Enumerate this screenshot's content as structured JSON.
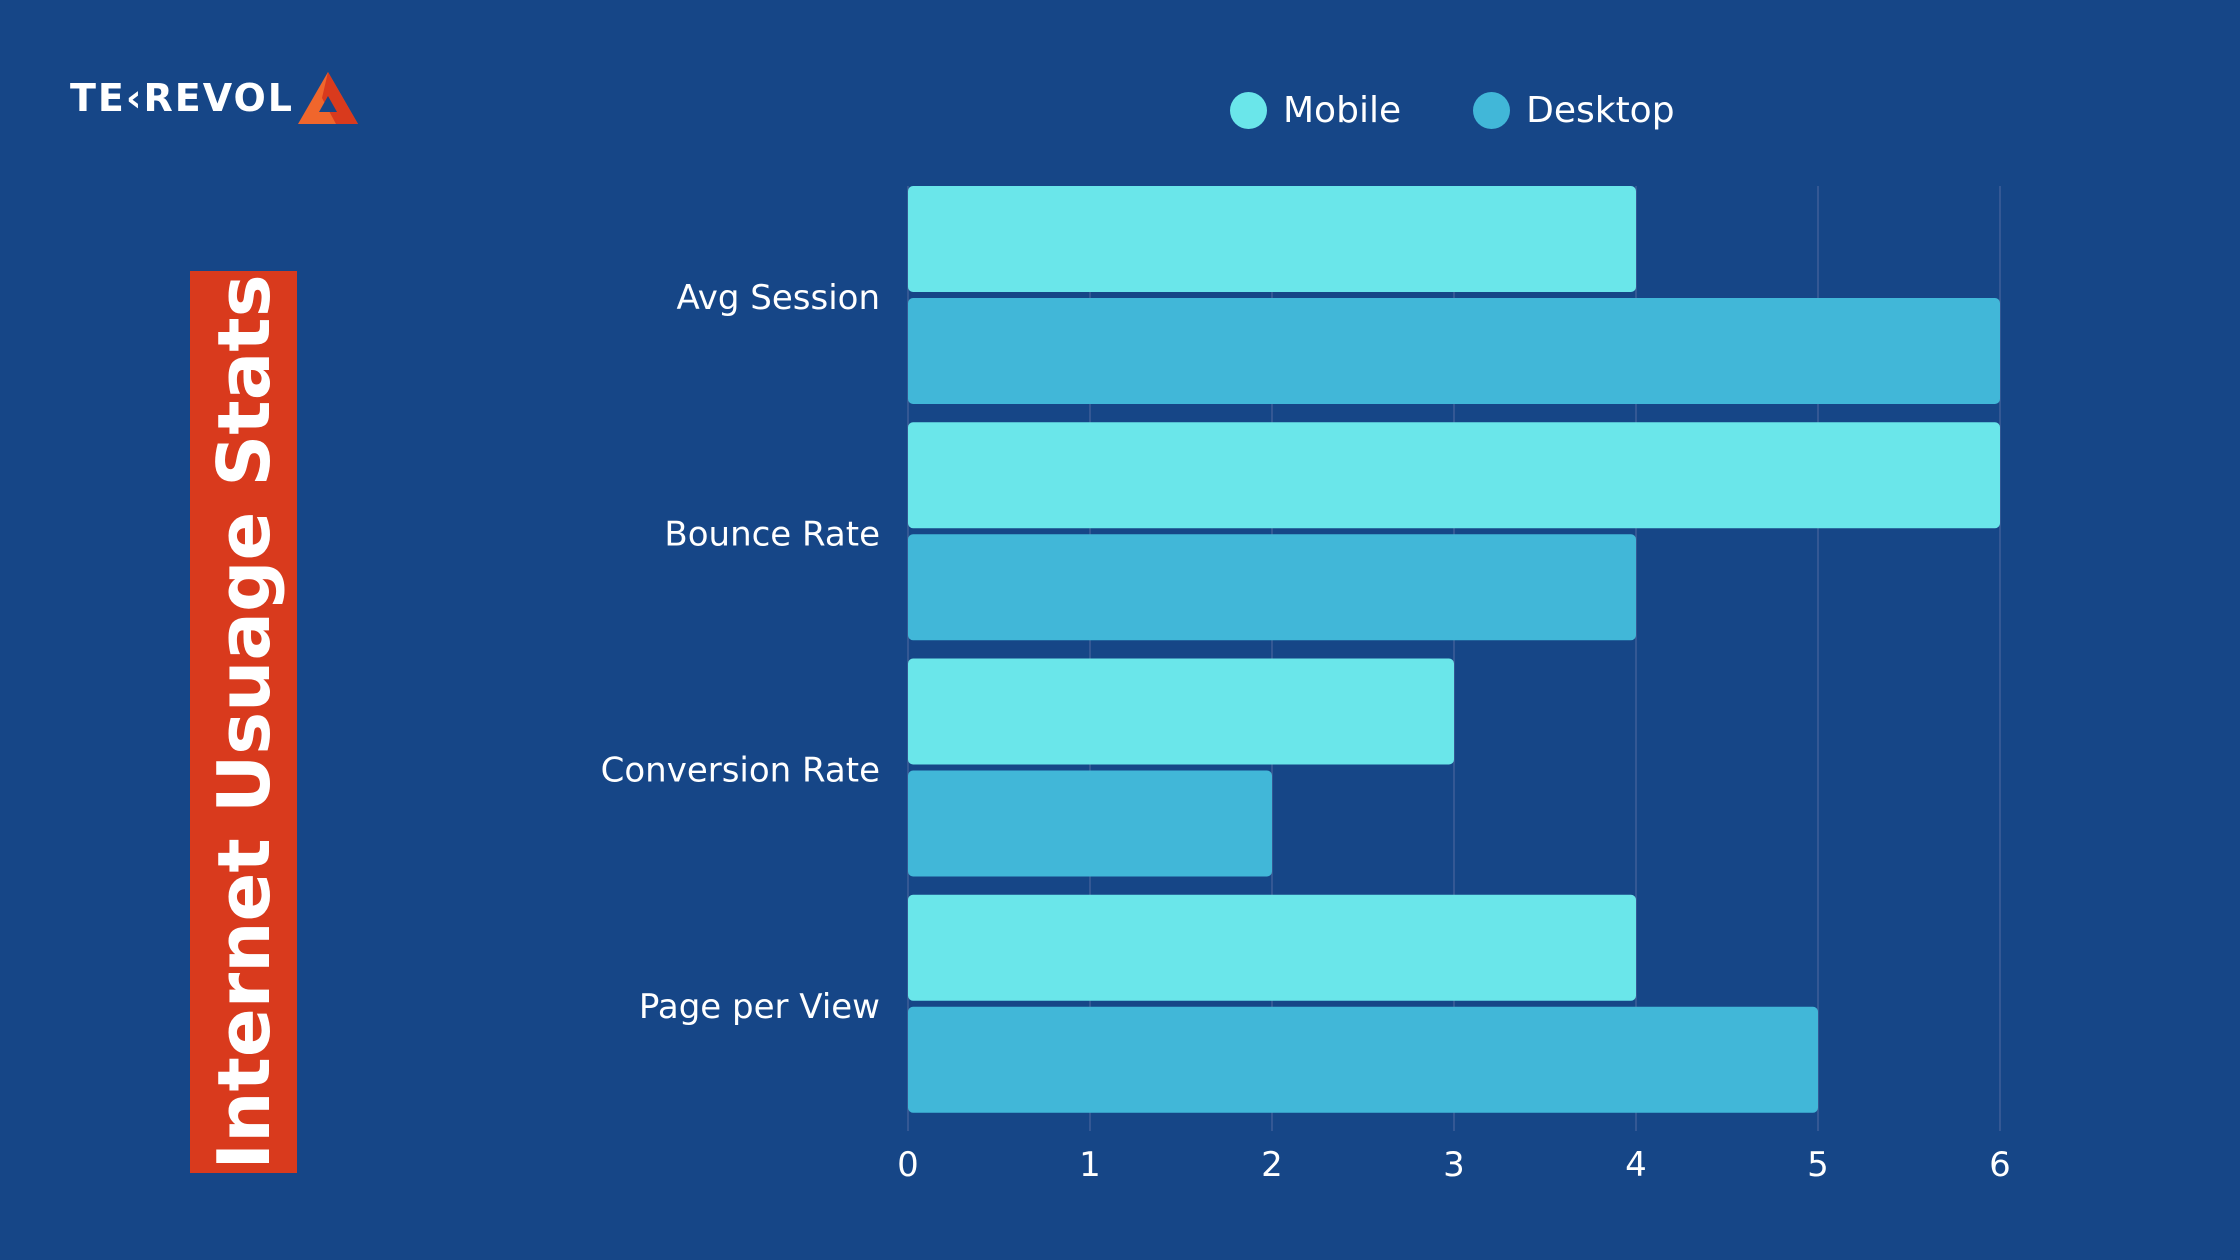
{
  "logo": {
    "text": "TE‹REVOL",
    "brand_colors": [
      "#ffffff",
      "#f0662c",
      "#d93a1d"
    ]
  },
  "title": "Internet Usuage Stats",
  "colors": {
    "background": "#164687",
    "title_bar": "#d93a1d",
    "mobile": "#6ae6ea",
    "desktop": "#41b7d8",
    "grid": "#3e5f98"
  },
  "legend": {
    "items": [
      {
        "label": "Mobile",
        "color": "#6ae6ea"
      },
      {
        "label": "Desktop",
        "color": "#41b7d8"
      }
    ]
  },
  "chart_data": {
    "type": "bar",
    "orientation": "horizontal",
    "categories": [
      "Avg Session",
      "Bounce Rate",
      "Conversion Rate",
      "Page per View"
    ],
    "series": [
      {
        "name": "Mobile",
        "values": [
          4,
          6,
          3,
          4
        ],
        "color": "#6ae6ea"
      },
      {
        "name": "Desktop",
        "values": [
          6,
          4,
          2,
          5
        ],
        "color": "#41b7d8"
      }
    ],
    "xlim": [
      0,
      6
    ],
    "xticks": [
      "0",
      "1",
      "2",
      "3",
      "4",
      "5",
      "6"
    ],
    "grid": true,
    "legend_position": "top"
  }
}
